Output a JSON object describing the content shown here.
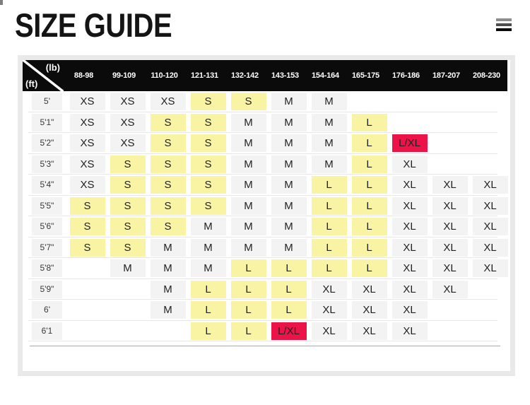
{
  "page": {
    "title": "SIZE GUIDE",
    "menu": {
      "icon": "hamburger-icon"
    },
    "colors": {
      "header_bg": "#0b0b0b",
      "card_border": "#e9e9e9",
      "cell_gray": "#f3f3f3",
      "highlight_yellow": "#f9f3a4",
      "highlight_red": "#ec1348"
    }
  },
  "table": {
    "corner": {
      "top_right": "(lb)",
      "bottom_left": "(ft)"
    },
    "weight_columns": [
      "88-98",
      "99-109",
      "110-120",
      "121-131",
      "132-142",
      "143-153",
      "154-164",
      "165-175",
      "176-186",
      "187-207",
      "208-230"
    ],
    "rows": [
      {
        "height": "5'",
        "cells": [
          [
            "XS",
            "g"
          ],
          [
            "XS",
            "g"
          ],
          [
            "XS",
            "g"
          ],
          [
            "S",
            "y"
          ],
          [
            "S",
            "y"
          ],
          [
            "M",
            "g"
          ],
          [
            "M",
            "g"
          ],
          null,
          null,
          null,
          null
        ]
      },
      {
        "height": "5'1\"",
        "cells": [
          [
            "XS",
            "g"
          ],
          [
            "XS",
            "g"
          ],
          [
            "S",
            "y"
          ],
          [
            "S",
            "y"
          ],
          [
            "M",
            "g"
          ],
          [
            "M",
            "g"
          ],
          [
            "M",
            "g"
          ],
          [
            "L",
            "y"
          ],
          null,
          null,
          null
        ]
      },
      {
        "height": "5'2\"",
        "cells": [
          [
            "XS",
            "g"
          ],
          [
            "XS",
            "g"
          ],
          [
            "S",
            "y"
          ],
          [
            "S",
            "y"
          ],
          [
            "M",
            "g"
          ],
          [
            "M",
            "g"
          ],
          [
            "M",
            "g"
          ],
          [
            "L",
            "y"
          ],
          [
            "L/XL",
            "r"
          ],
          null,
          null
        ]
      },
      {
        "height": "5'3\"",
        "cells": [
          [
            "XS",
            "g"
          ],
          [
            "S",
            "y"
          ],
          [
            "S",
            "y"
          ],
          [
            "S",
            "y"
          ],
          [
            "M",
            "g"
          ],
          [
            "M",
            "g"
          ],
          [
            "M",
            "g"
          ],
          [
            "L",
            "y"
          ],
          [
            "XL",
            "g"
          ],
          null,
          null
        ]
      },
      {
        "height": "5'4\"",
        "cells": [
          [
            "XS",
            "g"
          ],
          [
            "S",
            "y"
          ],
          [
            "S",
            "y"
          ],
          [
            "S",
            "y"
          ],
          [
            "M",
            "g"
          ],
          [
            "M",
            "g"
          ],
          [
            "L",
            "y"
          ],
          [
            "L",
            "y"
          ],
          [
            "XL",
            "g"
          ],
          [
            "XL",
            "g"
          ],
          [
            "XL",
            "g"
          ]
        ]
      },
      {
        "height": "5'5\"",
        "cells": [
          [
            "S",
            "y"
          ],
          [
            "S",
            "y"
          ],
          [
            "S",
            "y"
          ],
          [
            "S",
            "y"
          ],
          [
            "M",
            "g"
          ],
          [
            "M",
            "g"
          ],
          [
            "L",
            "y"
          ],
          [
            "L",
            "y"
          ],
          [
            "XL",
            "g"
          ],
          [
            "XL",
            "g"
          ],
          [
            "XL",
            "g"
          ]
        ]
      },
      {
        "height": "5'6\"",
        "cells": [
          [
            "S",
            "y"
          ],
          [
            "S",
            "y"
          ],
          [
            "S",
            "y"
          ],
          [
            "M",
            "g"
          ],
          [
            "M",
            "g"
          ],
          [
            "M",
            "g"
          ],
          [
            "L",
            "y"
          ],
          [
            "L",
            "y"
          ],
          [
            "XL",
            "g"
          ],
          [
            "XL",
            "g"
          ],
          [
            "XL",
            "g"
          ]
        ]
      },
      {
        "height": "5'7\"",
        "cells": [
          [
            "S",
            "y"
          ],
          [
            "S",
            "y"
          ],
          [
            "M",
            "g"
          ],
          [
            "M",
            "g"
          ],
          [
            "M",
            "g"
          ],
          [
            "M",
            "g"
          ],
          [
            "L",
            "y"
          ],
          [
            "L",
            "y"
          ],
          [
            "XL",
            "g"
          ],
          [
            "XL",
            "g"
          ],
          [
            "XL",
            "g"
          ]
        ]
      },
      {
        "height": "5'8\"",
        "cells": [
          null,
          [
            "M",
            "g"
          ],
          [
            "M",
            "g"
          ],
          [
            "M",
            "g"
          ],
          [
            "L",
            "y"
          ],
          [
            "L",
            "y"
          ],
          [
            "L",
            "y"
          ],
          [
            "L",
            "y"
          ],
          [
            "XL",
            "g"
          ],
          [
            "XL",
            "g"
          ],
          [
            "XL",
            "g"
          ]
        ]
      },
      {
        "height": "5'9\"",
        "cells": [
          null,
          null,
          [
            "M",
            "g"
          ],
          [
            "L",
            "y"
          ],
          [
            "L",
            "y"
          ],
          [
            "L",
            "y"
          ],
          [
            "XL",
            "g"
          ],
          [
            "XL",
            "g"
          ],
          [
            "XL",
            "g"
          ],
          [
            "XL",
            "g"
          ],
          null
        ]
      },
      {
        "height": "6'",
        "cells": [
          null,
          null,
          [
            "M",
            "g"
          ],
          [
            "L",
            "y"
          ],
          [
            "L",
            "y"
          ],
          [
            "L",
            "y"
          ],
          [
            "XL",
            "g"
          ],
          [
            "XL",
            "g"
          ],
          [
            "XL",
            "g"
          ],
          null,
          null
        ]
      },
      {
        "height": "6'1",
        "cells": [
          null,
          null,
          null,
          [
            "L",
            "y"
          ],
          [
            "L",
            "y"
          ],
          [
            "L/XL",
            "r"
          ],
          [
            "XL",
            "g"
          ],
          [
            "XL",
            "g"
          ],
          [
            "XL",
            "g"
          ],
          null,
          null
        ]
      }
    ]
  }
}
